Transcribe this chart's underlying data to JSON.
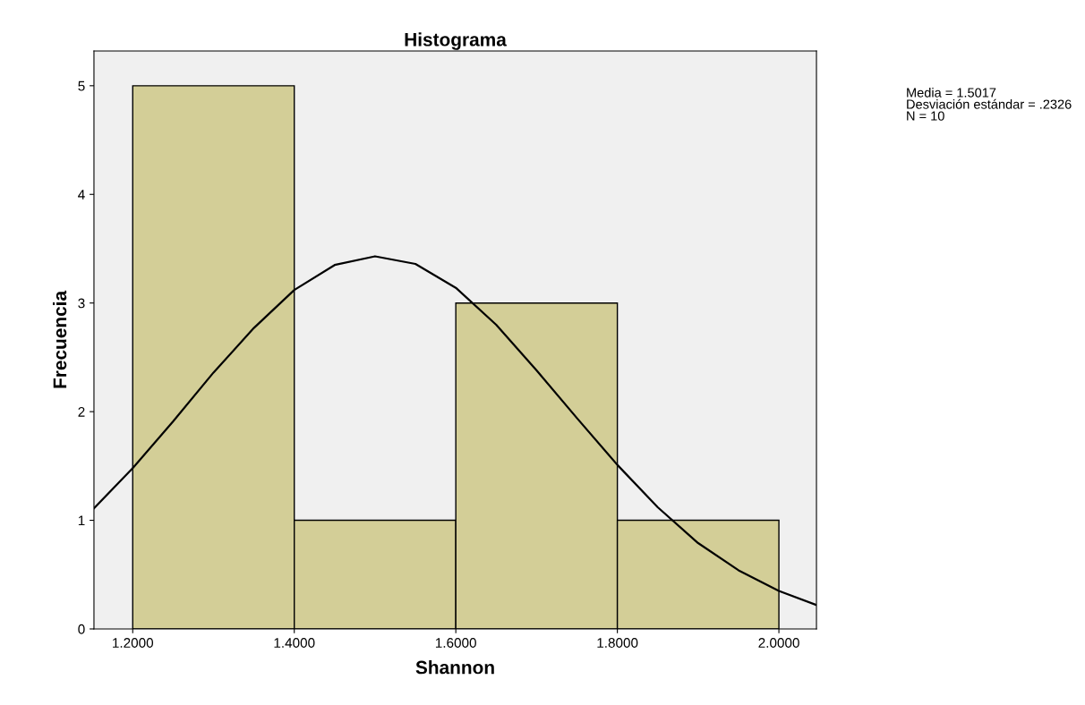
{
  "chart_data": {
    "type": "histogram",
    "title": "Histograma",
    "xlabel": "Shannon",
    "ylabel": "Frecuencia",
    "bins": [
      1.2,
      1.4,
      1.6,
      1.8,
      2.0
    ],
    "values": [
      5,
      1,
      3,
      1
    ],
    "color": "#d3ce97",
    "series": [
      {
        "type": "line",
        "color": "#000000",
        "x": [
          1.152,
          1.2,
          1.25,
          1.3,
          1.35,
          1.4,
          1.45,
          1.5,
          1.55,
          1.6,
          1.65,
          1.7,
          1.75,
          1.8,
          1.85,
          1.9,
          1.95,
          2.0,
          2.0465
        ],
        "values": [
          1.11,
          1.48,
          1.91,
          2.36,
          2.77,
          3.12,
          3.35,
          3.43,
          3.36,
          3.14,
          2.8,
          2.38,
          1.94,
          1.51,
          1.12,
          0.79,
          0.54,
          0.35,
          0.22
        ]
      }
    ],
    "xlim": [
      1.152,
      2.0465
    ],
    "ylim": [
      0,
      5.32
    ],
    "xticks": [
      {
        "value": 1.2,
        "label": "1.2000"
      },
      {
        "value": 1.4,
        "label": "1.4000"
      },
      {
        "value": 1.6,
        "label": "1.6000"
      },
      {
        "value": 1.8,
        "label": "1.8000"
      },
      {
        "value": 2.0,
        "label": "2.0000"
      }
    ],
    "yticks": [
      0,
      1,
      2,
      3,
      4,
      5
    ],
    "grid": false,
    "annotations": [
      "Media = 1.5017",
      "Desviación estándar = .2326",
      "N = 10"
    ]
  }
}
